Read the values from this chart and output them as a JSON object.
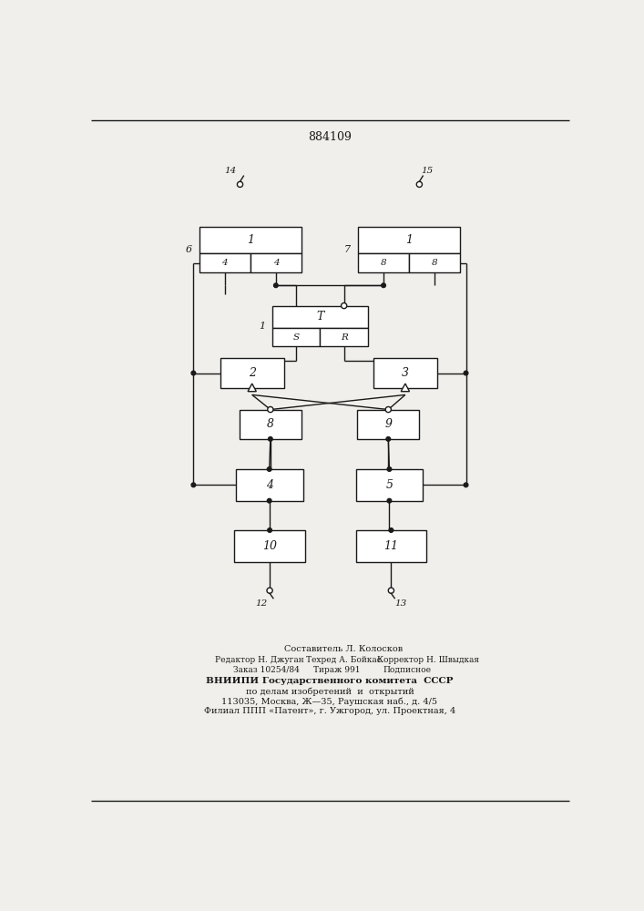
{
  "title": "884109",
  "bg_color": "#f0efeb",
  "line_color": "#1a1a1a",
  "box_color": "#ffffff",
  "footer_line1": "Составитель Л. Колосков",
  "footer_line2a": "Редактор Н. Джуган",
  "footer_line2b": "Техред А. Бойкас",
  "footer_line2c": "Корректор Н. Швыдкая",
  "footer_line3a": "Заказ 10254/84",
  "footer_line3b": "Тираж 991",
  "footer_line3c": "Подписное",
  "footer_line4": "ВНИИПИ Государственного комитета  СССР",
  "footer_line5": "по делам изобретений  и  открытий",
  "footer_line6": "113035, Москва, Ж—35, Раушская наб., д. 4/5",
  "footer_line7": "Филиал ППП «Патент», г. Ужгород, ул. Проектная, 4"
}
